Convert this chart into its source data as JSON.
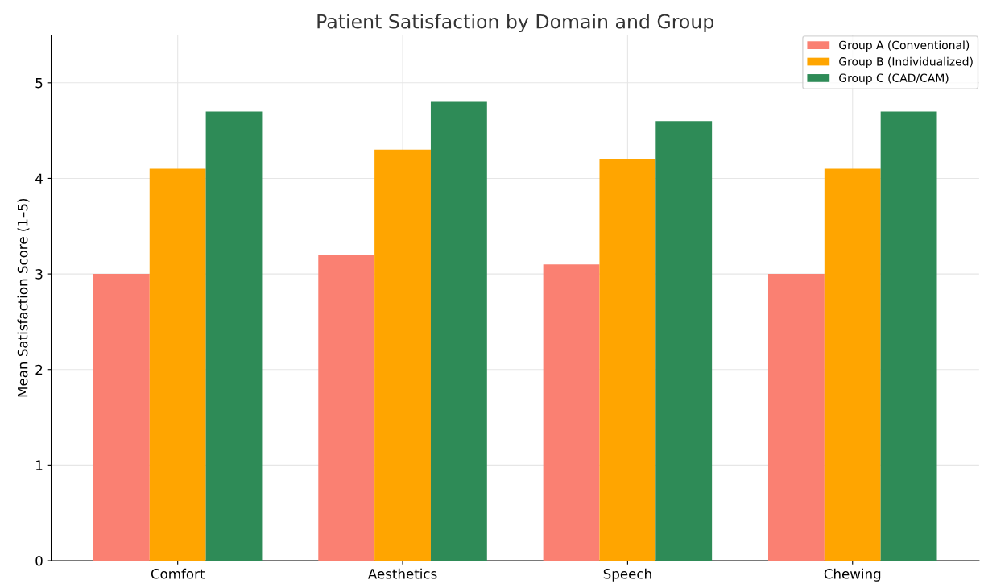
{
  "chart_data": {
    "type": "bar",
    "title": "Patient Satisfaction by Domain and Group",
    "ylabel": "Mean Satisfaction Score (1–5)",
    "categories": [
      "Comfort",
      "Aesthetics",
      "Speech",
      "Chewing"
    ],
    "series": [
      {
        "name": "Group A (Conventional)",
        "color": "#fa8072",
        "values": [
          3.0,
          3.2,
          3.1,
          3.0
        ]
      },
      {
        "name": "Group B (Individualized)",
        "color": "#ffa500",
        "values": [
          4.1,
          4.3,
          4.2,
          4.1
        ]
      },
      {
        "name": "Group C (CAD/CAM)",
        "color": "#2e8b57",
        "values": [
          4.7,
          4.8,
          4.6,
          4.7
        ]
      }
    ],
    "ylim": [
      0,
      5.5
    ],
    "yticks": [
      0,
      1,
      2,
      3,
      4,
      5
    ],
    "grid": true,
    "legend": "top right"
  }
}
